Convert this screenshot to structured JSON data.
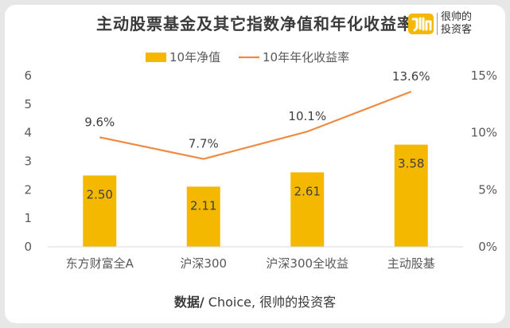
{
  "title": "主动股票基金及其它指数净值和年化收益率",
  "logo": {
    "line1": "很帅的",
    "line2": "投资客"
  },
  "source": {
    "prefix": "数据/",
    "text": " Choice, 很帅的投资客"
  },
  "colors": {
    "bar": "#f5b800",
    "line": "#ef8a43",
    "axis_text": "#595959",
    "gridline": "#d9d9d9"
  },
  "chart_data": {
    "type": "bar",
    "title": "主动股票基金及其它指数净值和年化收益率",
    "categories": [
      "东方财富全A",
      "沪深300",
      "沪深300全收益",
      "主动股基"
    ],
    "series": [
      {
        "name": "10年净值",
        "type": "bar",
        "axis": "left",
        "values": [
          2.5,
          2.11,
          2.61,
          3.58
        ],
        "labels": [
          "2.50",
          "2.11",
          "2.61",
          "3.58"
        ]
      },
      {
        "name": "10年年化收益率",
        "type": "line",
        "axis": "right",
        "values": [
          9.6,
          7.7,
          10.1,
          13.6
        ],
        "labels": [
          "9.6%",
          "7.7%",
          "10.1%",
          "13.6%"
        ]
      }
    ],
    "ylim_left": [
      0,
      6
    ],
    "yticks_left": [
      "0",
      "1",
      "2",
      "3",
      "4",
      "5",
      "6"
    ],
    "ylim_right": [
      0,
      15
    ],
    "yticks_right": [
      "0%",
      "5%",
      "10%",
      "15%"
    ],
    "legend_position": "top",
    "grid": false
  }
}
